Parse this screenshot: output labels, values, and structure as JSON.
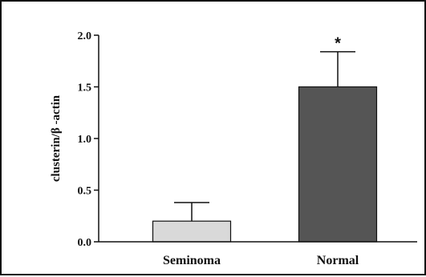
{
  "chart_data": {
    "type": "bar",
    "title": "",
    "xlabel": "",
    "ylabel": "clusterin/β -actin",
    "ylim": [
      0,
      2.0
    ],
    "yticks": [
      "0.0",
      "0.5",
      "1.0",
      "1.5",
      "2.0"
    ],
    "categories": [
      "Seminoma",
      "Normal"
    ],
    "values": [
      0.2,
      1.5
    ],
    "error_upper": [
      0.38,
      1.84
    ],
    "bar_colors": [
      "#d9d9d9",
      "#555555"
    ],
    "annotations": [
      {
        "category": "Normal",
        "text": "*"
      }
    ],
    "grid": false,
    "legend": "none"
  }
}
